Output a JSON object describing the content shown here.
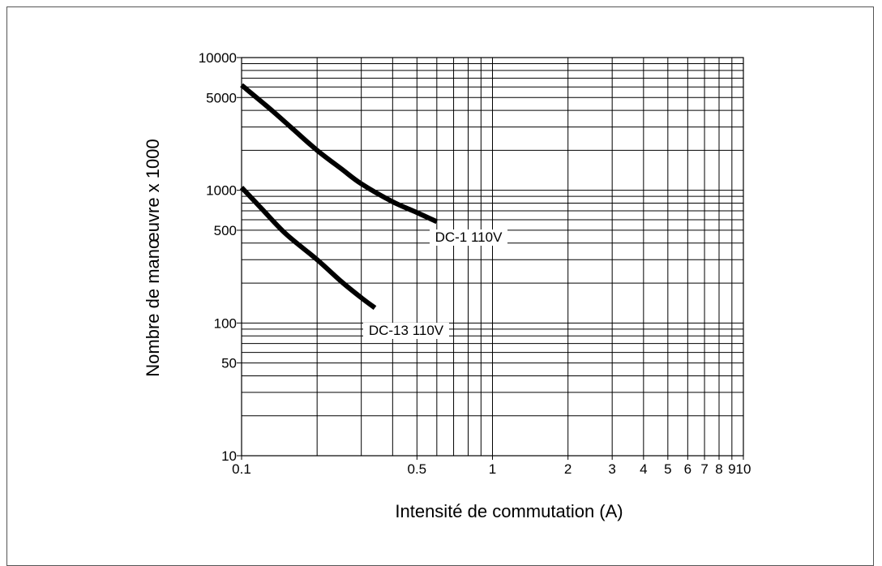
{
  "chart_data": {
    "type": "line",
    "xlabel": "Intensité de commutation (A)",
    "ylabel": "Nombre de manœuvre x 1000",
    "x_scale": "log",
    "y_scale": "log",
    "xlim": [
      0.1,
      10
    ],
    "ylim": [
      10,
      10000
    ],
    "grid": true,
    "x_ticks": [
      {
        "v": 0.1,
        "label": "0.1"
      },
      {
        "v": 0.5,
        "label": "0.5"
      },
      {
        "v": 1,
        "label": "1"
      },
      {
        "v": 2,
        "label": "2"
      },
      {
        "v": 3,
        "label": "3"
      },
      {
        "v": 4,
        "label": "4"
      },
      {
        "v": 5,
        "label": "5"
      },
      {
        "v": 6,
        "label": "6"
      },
      {
        "v": 7,
        "label": "7"
      },
      {
        "v": 8,
        "label": "8"
      },
      {
        "v": 9,
        "label": "9"
      },
      {
        "v": 10,
        "label": "10"
      }
    ],
    "y_ticks": [
      {
        "v": 10,
        "label": "10"
      },
      {
        "v": 50,
        "label": "50"
      },
      {
        "v": 100,
        "label": "100"
      },
      {
        "v": 500,
        "label": "500"
      },
      {
        "v": 1000,
        "label": "1000"
      },
      {
        "v": 5000,
        "label": "5000"
      },
      {
        "v": 10000,
        "label": "10000"
      }
    ],
    "series": [
      {
        "name": "DC-1 110V",
        "x": [
          0.1,
          0.13,
          0.16,
          0.2,
          0.25,
          0.3,
          0.4,
          0.5,
          0.6
        ],
        "y": [
          6200,
          4100,
          2900,
          2000,
          1450,
          1120,
          820,
          680,
          580
        ]
      },
      {
        "name": "DC-13 110V",
        "x": [
          0.1,
          0.12,
          0.15,
          0.2,
          0.25,
          0.3,
          0.34
        ],
        "y": [
          1050,
          730,
          470,
          300,
          205,
          155,
          130
        ]
      }
    ]
  }
}
